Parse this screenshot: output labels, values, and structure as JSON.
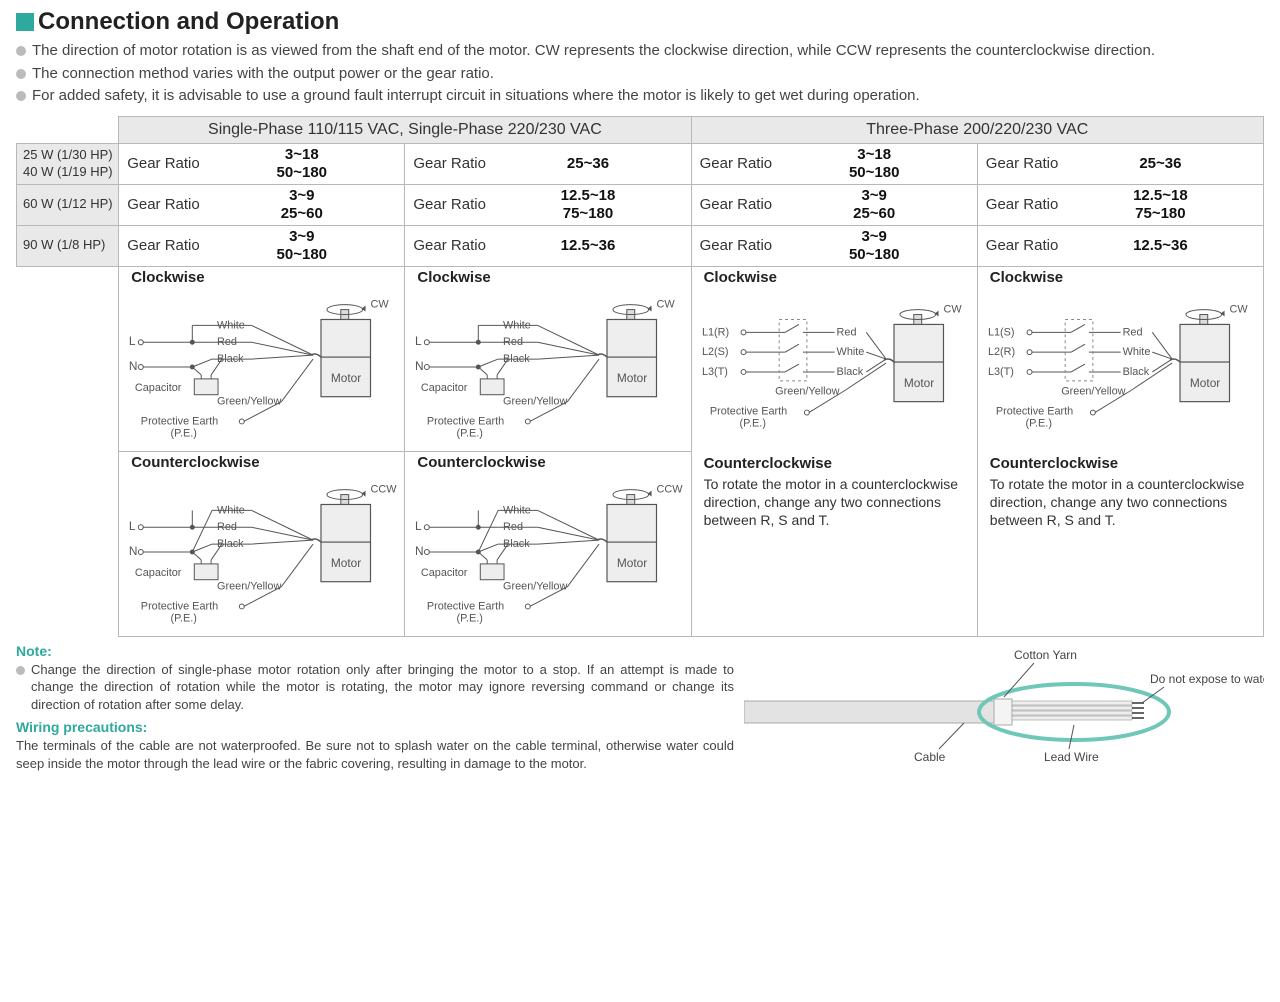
{
  "colors": {
    "accent": "#2ea99d",
    "header_bg": "#e9e9e9",
    "border": "#b8b8b8",
    "bullet": "#bbbbbb",
    "text": "#333333"
  },
  "heading": "Connection and Operation",
  "bullets": [
    "The direction of motor rotation is as viewed from the shaft end of the motor. CW represents the clockwise direction, while CCW represents the counterclockwise direction.",
    "The connection method varies with the output power or the gear ratio.",
    "For added safety, it is advisable to use a ground fault interrupt circuit in situations where the motor is likely to get wet during operation."
  ],
  "phase_headers": {
    "single": "Single-Phase 110/115 VAC, Single-Phase 220/230 VAC",
    "three": "Three-Phase 200/220/230 VAC"
  },
  "gear_label": "Gear Ratio",
  "power_rows": [
    {
      "label_a": "25 W (1/30 HP)",
      "label_b": "40 W (1/19 HP)",
      "c1a": "3~18",
      "c1b": "50~180",
      "c2a": "25~36",
      "c2b": "",
      "c3a": "3~18",
      "c3b": "50~180",
      "c4a": "25~36",
      "c4b": ""
    },
    {
      "label_a": "60 W (1/12 HP)",
      "label_b": "",
      "c1a": "3~9",
      "c1b": "25~60",
      "c2a": "12.5~18",
      "c2b": "75~180",
      "c3a": "3~9",
      "c3b": "25~60",
      "c4a": "12.5~18",
      "c4b": "75~180"
    },
    {
      "label_a": "90 W (1/8 HP)",
      "label_b": "",
      "c1a": "3~9",
      "c1b": "50~180",
      "c2a": "12.5~36",
      "c2b": "",
      "c3a": "3~9",
      "c3b": "50~180",
      "c4a": "12.5~36",
      "c4b": ""
    }
  ],
  "dir_cw": "Clockwise",
  "dir_ccw": "Counterclockwise",
  "ccw_three_phase_text": "To rotate the motor in a counterclockwise direction, change any two connections between R, S and T.",
  "single_diagram": {
    "lines": {
      "L": "L",
      "N": "N"
    },
    "wires": {
      "white": "White",
      "red": "Red",
      "black": "Black",
      "gy": "Green/Yellow"
    },
    "capacitor": "Capacitor",
    "pe1": "Protective Earth",
    "pe2": "(P.E.)",
    "motor": "Motor",
    "cw": "CW",
    "ccw": "CCW"
  },
  "three_diagram": {
    "lines_cw": {
      "l1": "L1(R)",
      "l2": "L2(S)",
      "l3": "L3(T)"
    },
    "lines_ccw": {
      "l1": "L1(S)",
      "l2": "L2(R)",
      "l3": "L3(T)"
    },
    "wires": {
      "red": "Red",
      "white": "White",
      "black": "Black",
      "gy": "Green/Yellow"
    },
    "pe1": "Protective Earth",
    "pe2": "(P.E.)",
    "motor": "Motor",
    "cw": "CW"
  },
  "note_heading": "Note:",
  "note_body": "Change the direction of single-phase motor rotation only after bringing the motor to a stop. If an attempt is made to change the direction of rotation while the motor is rotating, the motor may ignore reversing command or change its direction of rotation after some delay.",
  "wiring_heading": "Wiring precautions:",
  "wiring_body": "The terminals of the cable are not waterproofed. Be sure not to splash water on the cable terminal, otherwise water could seep inside the motor through the lead wire or the fabric covering, resulting in damage to the motor.",
  "cable_diagram": {
    "cotton_yarn": "Cotton Yarn",
    "no_expose": "Do not expose to water",
    "cable": "Cable",
    "lead_wire": "Lead Wire"
  }
}
